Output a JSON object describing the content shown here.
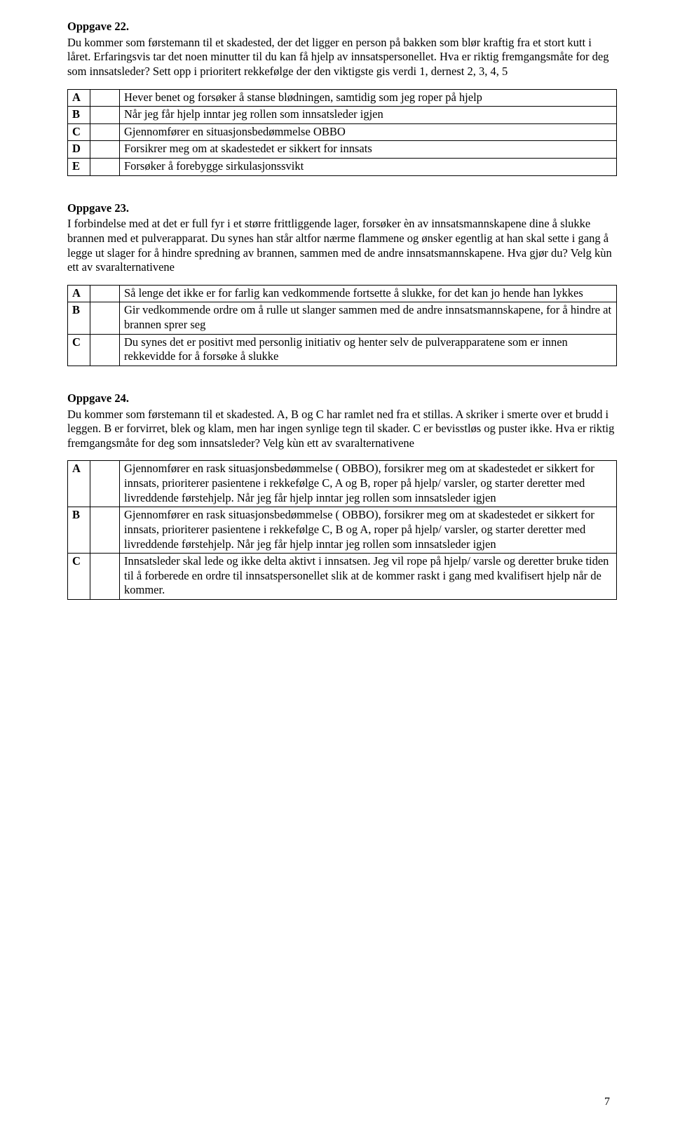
{
  "page_number": "7",
  "sections": [
    {
      "heading": "Oppgave 22.",
      "prompt": "Du kommer som førstemann til et skadested, der det ligger en person på bakken som blør kraftig fra et stort kutt i låret. Erfaringsvis tar det noen minutter til du kan få hjelp av innsatspersonellet. Hva er riktig fremgangsmåte for deg som innsatsleder? Sett opp i prioritert rekkefølge der den viktigste gis verdi 1, dernest 2, 3, 4, 5",
      "rows": [
        {
          "letter": "A",
          "text": "Hever benet og forsøker å stanse blødningen, samtidig som jeg roper på hjelp"
        },
        {
          "letter": "B",
          "text": "Når jeg får hjelp inntar jeg rollen som innsatsleder igjen"
        },
        {
          "letter": "C",
          "text": "Gjennomfører en situasjonsbedømmelse OBBO"
        },
        {
          "letter": "D",
          "text": "Forsikrer meg om at skadestedet er sikkert for innsats"
        },
        {
          "letter": "E",
          "text": "Forsøker å forebygge sirkulasjonssvikt"
        }
      ]
    },
    {
      "heading": "Oppgave 23.",
      "prompt": "I forbindelse med at det er full fyr i et større frittliggende lager, forsøker èn av innsatsmannskapene dine å slukke brannen med et pulverapparat. Du synes han står altfor nærme flammene og ønsker egentlig at han skal sette i gang å legge ut slager for å hindre spredning av brannen, sammen med de andre innsatsmannskapene. Hva gjør du? Velg kùn ett av svaralternativene",
      "rows": [
        {
          "letter": "A",
          "text": "Så lenge det ikke er for farlig kan vedkommende fortsette å slukke, for det kan jo hende han lykkes"
        },
        {
          "letter": "B",
          "text": "Gir vedkommende ordre om å rulle ut slanger sammen med de andre innsatsmannskapene, for å hindre at brannen sprer seg"
        },
        {
          "letter": "C",
          "text": "Du synes det er positivt med personlig initiativ og henter selv de pulverapparatene som er innen rekkevidde for å forsøke å slukke"
        }
      ]
    },
    {
      "heading": "Oppgave 24.",
      "prompt": "Du kommer som førstemann til et skadested. A, B og C har ramlet ned fra et stillas. A skriker i smerte over et brudd i leggen. B er forvirret, blek og klam, men har ingen synlige tegn til skader. C er bevisstløs og puster ikke. Hva er riktig fremgangsmåte for deg som innsatsleder? Velg kùn ett av svaralternativene",
      "rows": [
        {
          "letter": "A",
          "text": "Gjennomfører en rask situasjonsbedømmelse ( OBBO), forsikrer meg om at skadestedet er sikkert for innsats, prioriterer pasientene i rekkefølge C, A og B, roper på hjelp/ varsler, og starter deretter med livreddende førstehjelp. Når jeg får hjelp inntar jeg rollen som innsatsleder igjen"
        },
        {
          "letter": "B",
          "text": "Gjennomfører en rask situasjonsbedømmelse ( OBBO), forsikrer meg om at skadestedet er sikkert for innsats, prioriterer pasientene i rekkefølge C, B og A, roper på hjelp/ varsler, og starter deretter med livreddende førstehjelp. Når jeg får hjelp inntar jeg rollen som innsatsleder igjen"
        },
        {
          "letter": "C",
          "text": "Innsatsleder skal lede og ikke delta aktivt i innsatsen. Jeg vil rope på hjelp/ varsle og deretter bruke tiden til å forberede en ordre til innsatspersonellet slik at de kommer raskt i gang med kvalifisert hjelp når de kommer."
        }
      ]
    }
  ]
}
